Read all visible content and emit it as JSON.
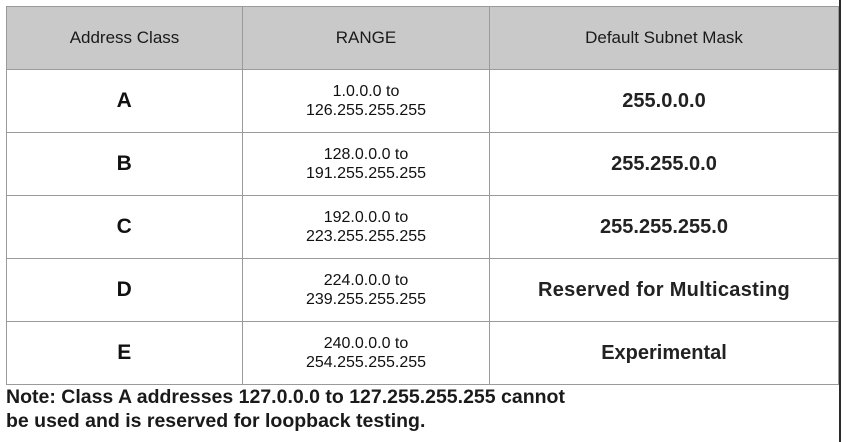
{
  "table": {
    "headers": {
      "address_class": "Address Class",
      "range": "RANGE",
      "default_subnet_mask": "Default Subnet Mask"
    },
    "rows": [
      {
        "address_class": "A",
        "range_start": "1.0.0.0 to",
        "range_end": "126.255.255.255",
        "default_subnet_mask": "255.0.0.0"
      },
      {
        "address_class": "B",
        "range_start": "128.0.0.0 to",
        "range_end": "191.255.255.255",
        "default_subnet_mask": "255.255.0.0"
      },
      {
        "address_class": "C",
        "range_start": "192.0.0.0 to",
        "range_end": "223.255.255.255",
        "default_subnet_mask": "255.255.255.0"
      },
      {
        "address_class": "D",
        "range_start": "224.0.0.0 to",
        "range_end": "239.255.255.255",
        "default_subnet_mask": "Reserved for Multicasting"
      },
      {
        "address_class": "E",
        "range_start": "240.0.0.0 to",
        "range_end": "254.255.255.255",
        "default_subnet_mask": "Experimental"
      }
    ]
  },
  "note": {
    "line1": "Note: Class A addresses 127.0.0.0 to 127.255.255.255 cannot",
    "line2": "be used and is reserved for loopback testing."
  }
}
